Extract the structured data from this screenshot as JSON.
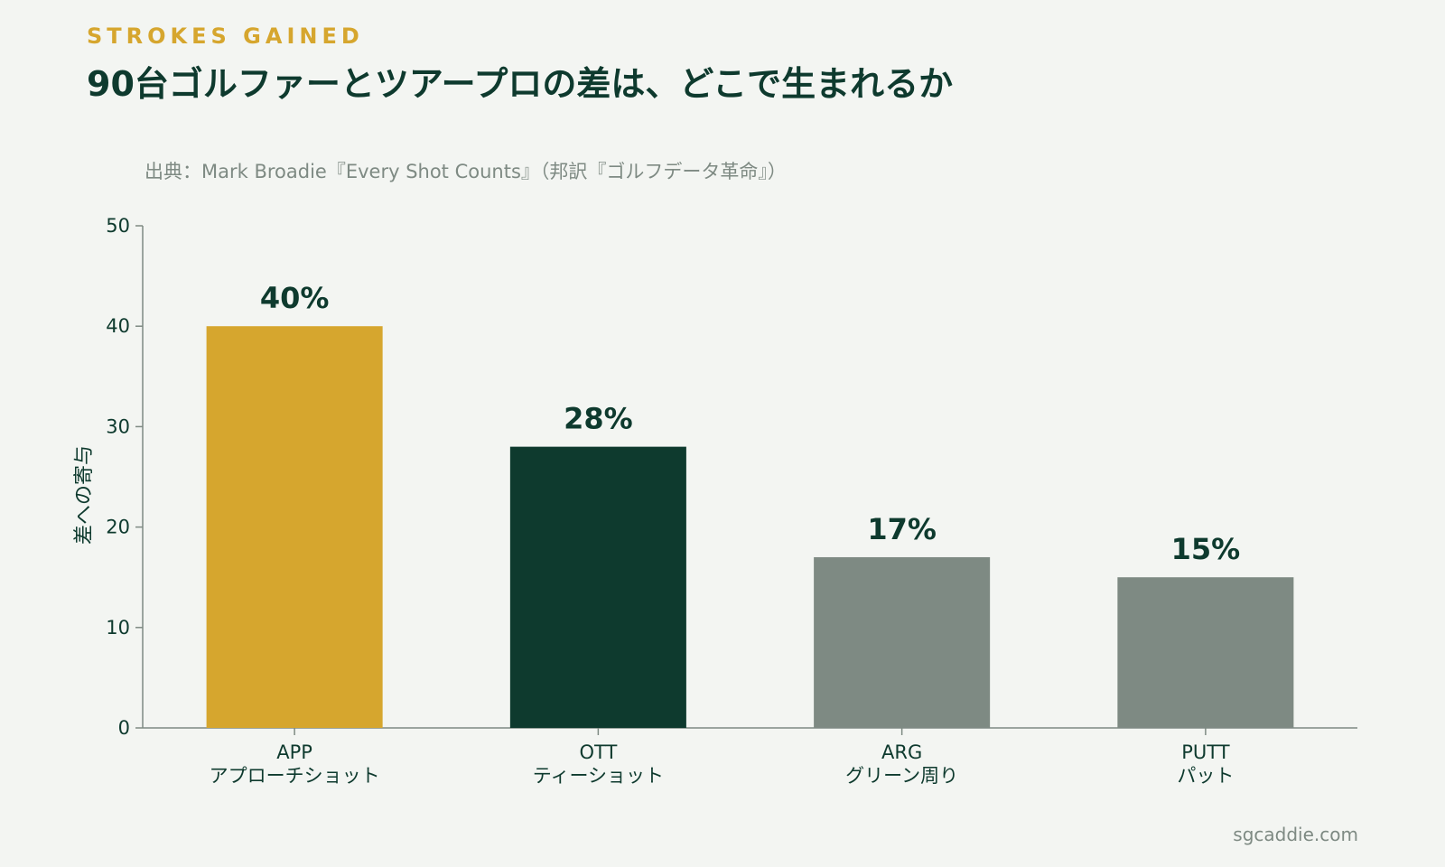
{
  "header": {
    "eyebrow": "STROKES GAINED",
    "title": "90台ゴルファーとツアープロの差は、どこで生まれるか",
    "source": "出典：Mark Broadie『Every Shot Counts』（邦訳『ゴルフデータ革命』）"
  },
  "footer": {
    "credit": "sgcaddie.com"
  },
  "colors": {
    "background": "#f3f5f2",
    "accent": "#d6a62e",
    "dark_green": "#0e3a2e",
    "gray": "#7e8a83"
  },
  "chart_data": {
    "type": "bar",
    "title": "90台ゴルファーとツアープロの差は、どこで生まれるか",
    "xlabel": "",
    "ylabel": "差への寄与",
    "ylim": [
      0,
      50
    ],
    "yticks": [
      0,
      10,
      20,
      30,
      40,
      50
    ],
    "grid": false,
    "categories": [
      {
        "code": "APP",
        "name": "アプローチショット"
      },
      {
        "code": "OTT",
        "name": "ティーショット"
      },
      {
        "code": "ARG",
        "name": "グリーン周り"
      },
      {
        "code": "PUTT",
        "name": "パット"
      }
    ],
    "values": [
      40,
      28,
      17,
      15
    ],
    "value_labels": [
      "40%",
      "28%",
      "17%",
      "15%"
    ],
    "bar_colors": [
      "#d6a62e",
      "#0e3a2e",
      "#7e8a83",
      "#7e8a83"
    ]
  }
}
